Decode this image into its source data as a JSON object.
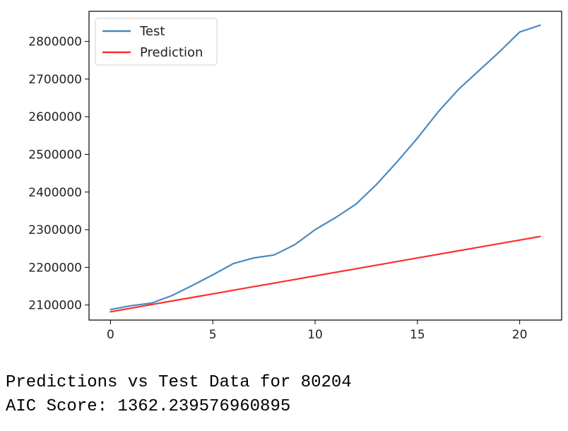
{
  "chart_data": {
    "type": "line",
    "title": "",
    "xlabel": "",
    "ylabel": "",
    "xlim": [
      -1.05,
      22.05
    ],
    "ylim": [
      2060000,
      2880000
    ],
    "xticks": [
      0,
      5,
      10,
      15,
      20
    ],
    "yticks": [
      2100000,
      2200000,
      2300000,
      2400000,
      2500000,
      2600000,
      2700000,
      2800000
    ],
    "grid": false,
    "legend": "top-left",
    "x": [
      0,
      1,
      2,
      3,
      4,
      5,
      6,
      7,
      8,
      9,
      10,
      11,
      12,
      13,
      14,
      15,
      16,
      17,
      18,
      19,
      20,
      21
    ],
    "series": [
      {
        "name": "Test",
        "color": "#4a8ac0",
        "values": [
          2088000,
          2098000,
          2105000,
          2125000,
          2152000,
          2180000,
          2210000,
          2225000,
          2233000,
          2260000,
          2300000,
          2332000,
          2368000,
          2420000,
          2480000,
          2543000,
          2612000,
          2672000,
          2722000,
          2772000,
          2825000,
          2843000
        ]
      },
      {
        "name": "Prediction",
        "color": "#ff2d2d",
        "values": [
          2082000,
          2091524,
          2101048,
          2110571,
          2120095,
          2129619,
          2139143,
          2148667,
          2158190,
          2167714,
          2177238,
          2186762,
          2196286,
          2205810,
          2215333,
          2224857,
          2234381,
          2243905,
          2253429,
          2262952,
          2272476,
          2282000
        ]
      }
    ]
  },
  "captions": {
    "line1": "Predictions vs Test Data for 80204",
    "line2": "AIC Score: 1362.239576960895"
  }
}
